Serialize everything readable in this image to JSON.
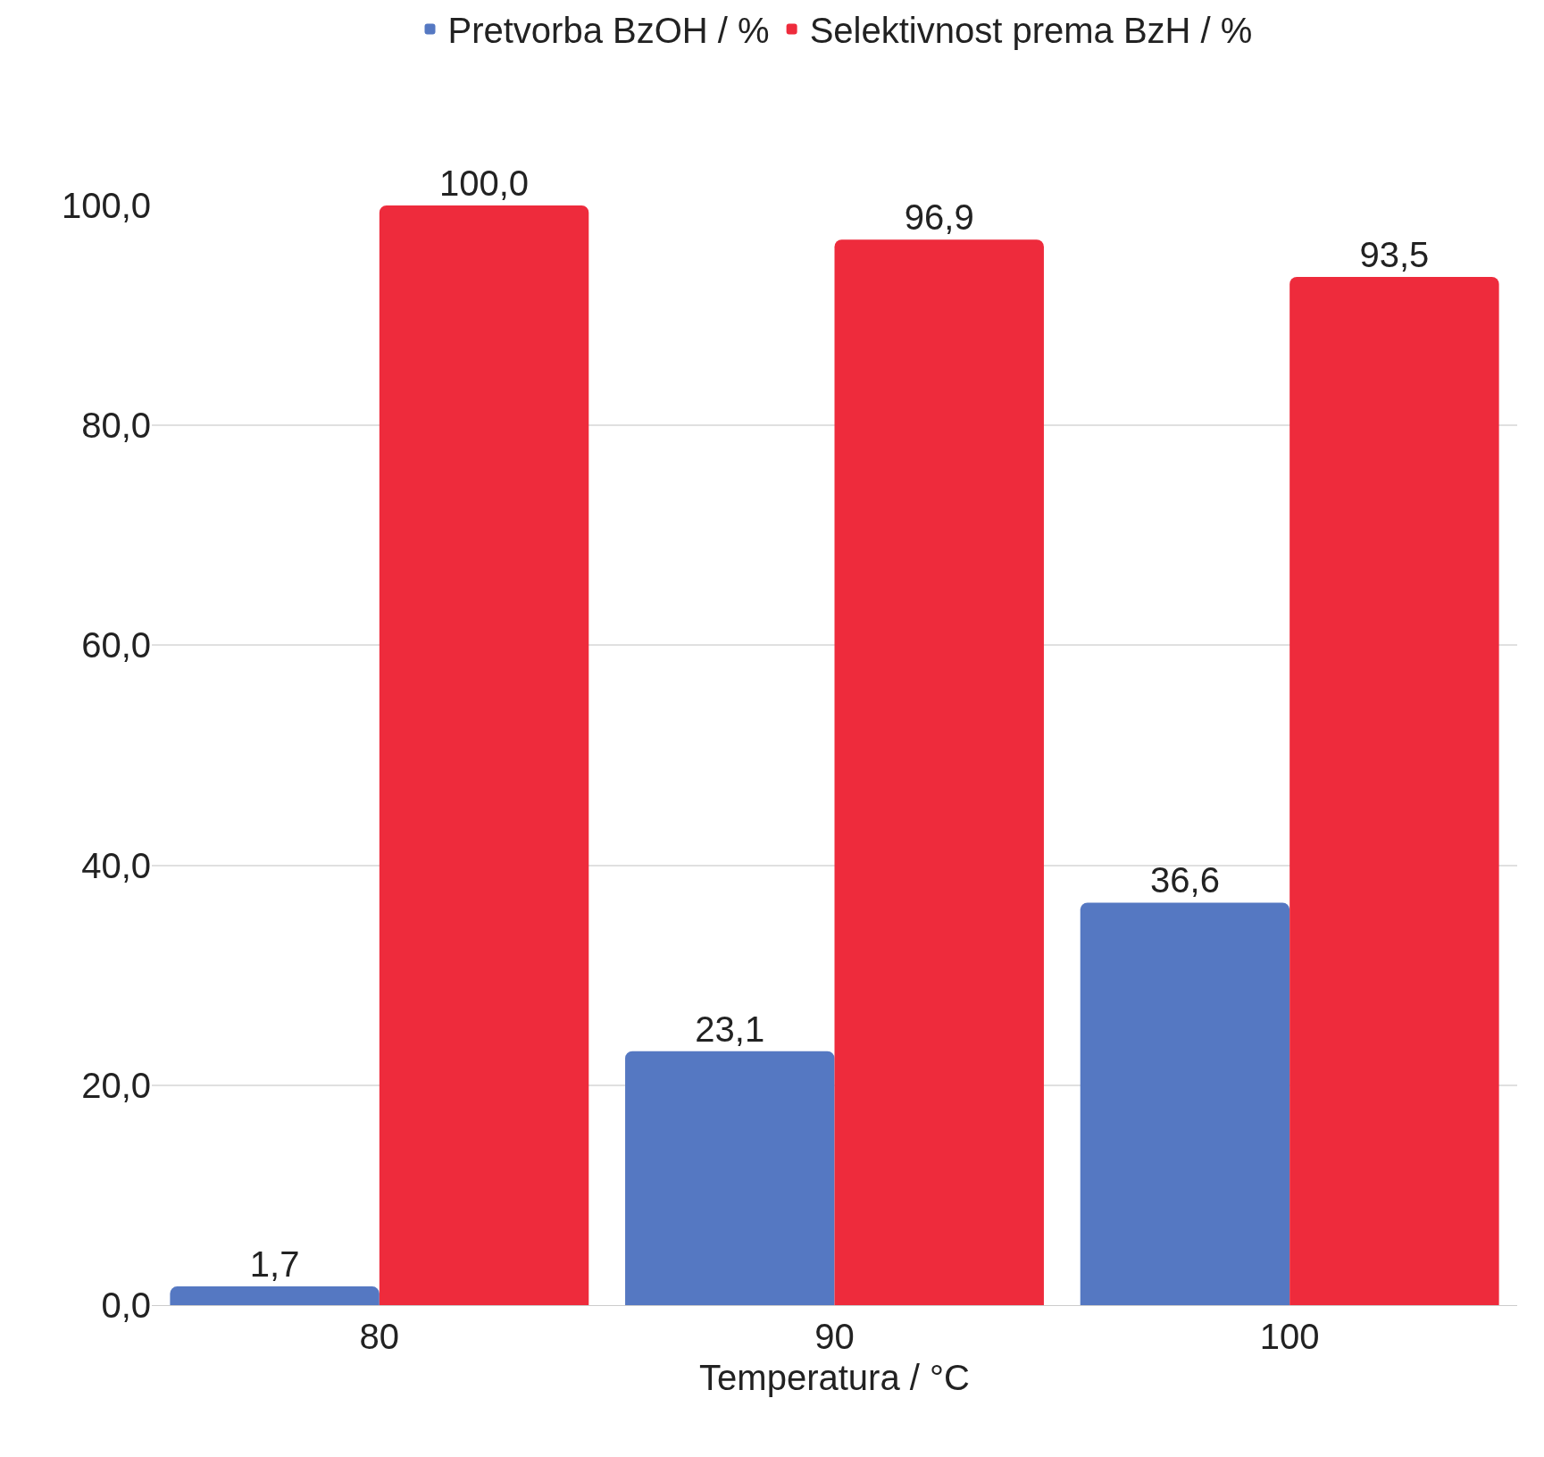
{
  "chart_data": {
    "type": "bar",
    "xlabel": "Temperatura / °C",
    "categories": [
      "80",
      "90",
      "100"
    ],
    "series": [
      {
        "name": "Pretvorba BzOH / %",
        "color": "#5578c2",
        "values": [
          1.7,
          23.1,
          36.6
        ],
        "value_labels": [
          "1,7",
          "23,1",
          "36,6"
        ]
      },
      {
        "name": "Selektivnost prema BzH / %",
        "color": "#ee2b3c",
        "values": [
          100.0,
          96.9,
          93.5
        ],
        "value_labels": [
          "100,0",
          "96,9",
          "93,5"
        ]
      }
    ],
    "ylim": [
      0,
      100
    ],
    "yticks": [
      {
        "value": 0,
        "label": "0,0"
      },
      {
        "value": 20,
        "label": "20,0"
      },
      {
        "value": 40,
        "label": "40,0"
      },
      {
        "value": 60,
        "label": "60,0"
      },
      {
        "value": 80,
        "label": "80,0"
      },
      {
        "value": 100,
        "label": "100,0"
      }
    ],
    "grid": "y",
    "legend": "top"
  }
}
